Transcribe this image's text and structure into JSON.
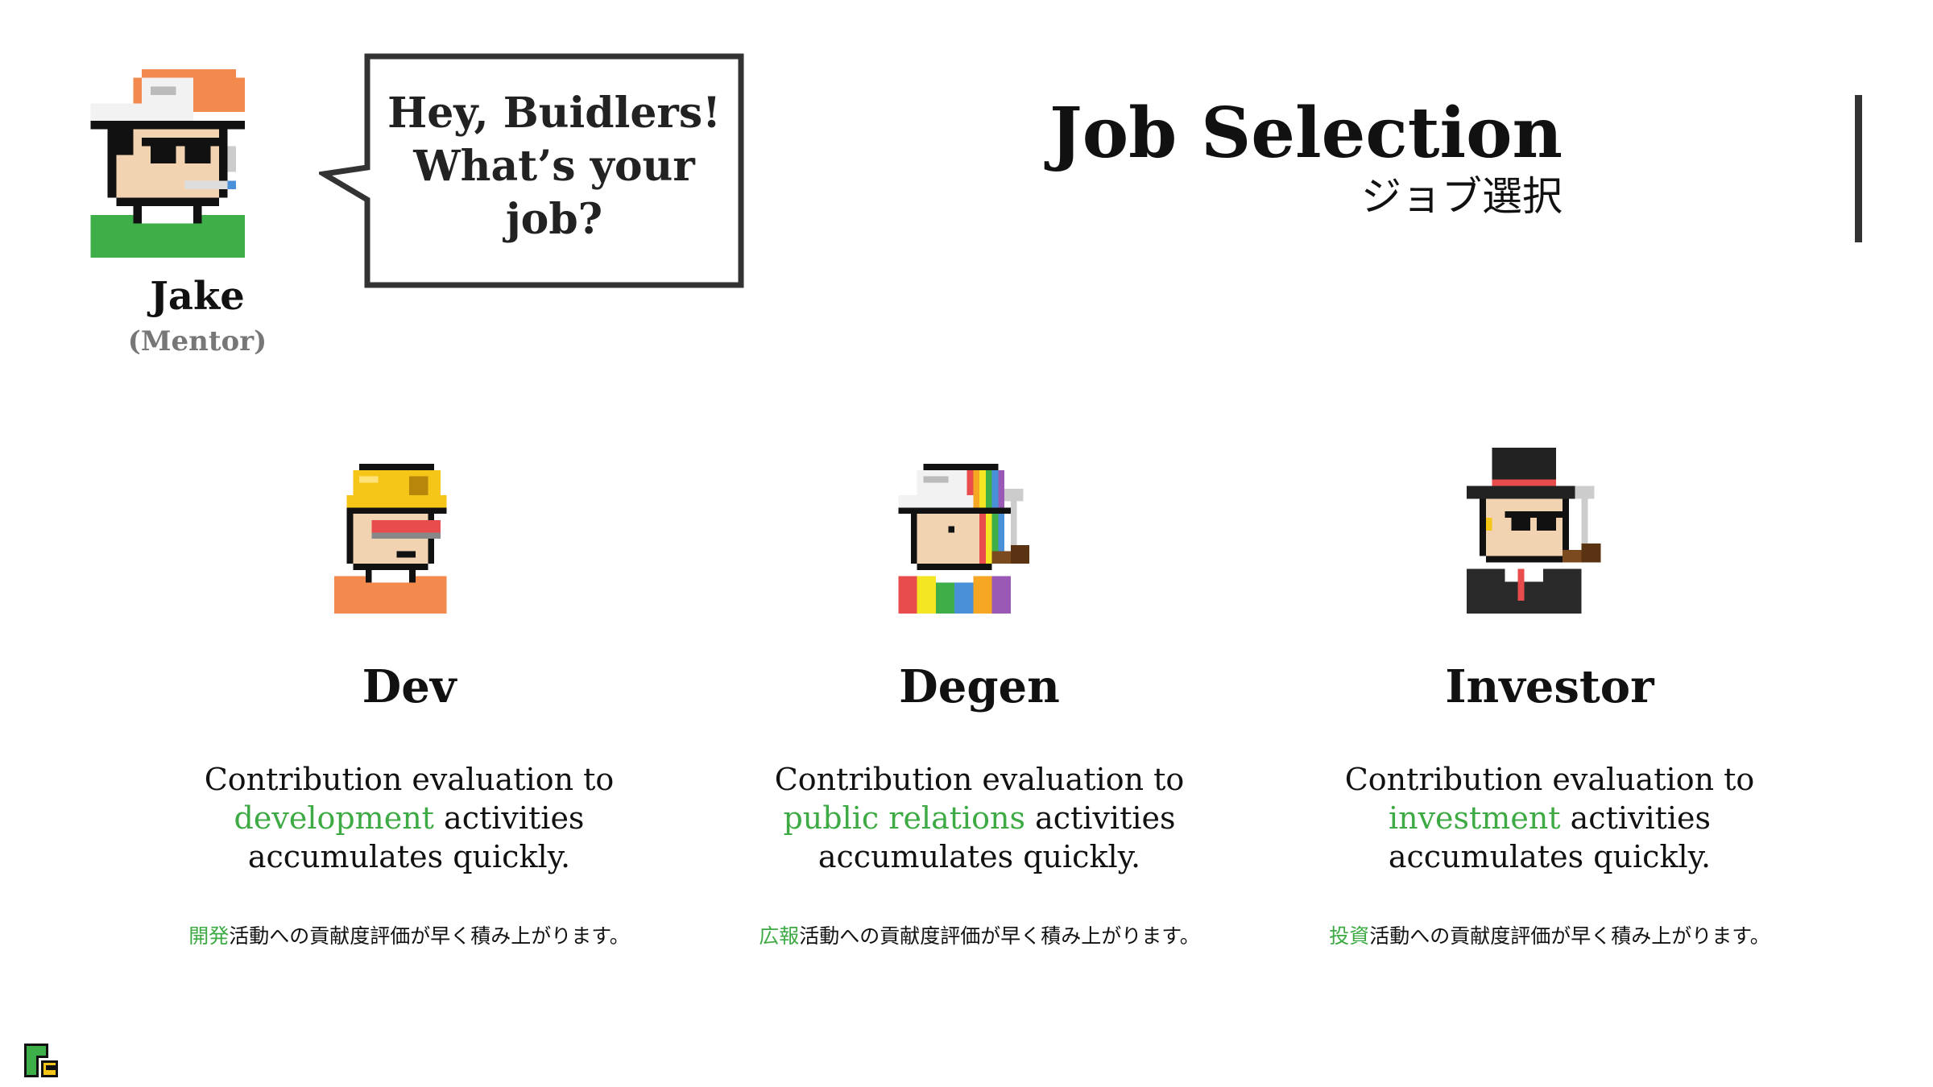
{
  "mentor": {
    "name": "Jake",
    "role": "(Mentor)",
    "avatar_icon": "mentor-pixel-avatar"
  },
  "speech": {
    "lines": [
      "Hey, Buidlers!",
      "What’s your",
      "job?"
    ]
  },
  "title": {
    "en": "Job Selection",
    "jp": "ジョブ選択"
  },
  "jobs": [
    {
      "name": "Dev",
      "icon": "dev-pixel-avatar",
      "desc_pre": "Contribution evaluation to",
      "desc_highlight": "development",
      "desc_post": " activities",
      "desc_end": "accumulates quickly.",
      "jp_highlight": "開発",
      "jp_rest": "活動への貢献度評価が早く積み上がります。"
    },
    {
      "name": "Degen",
      "icon": "degen-pixel-avatar",
      "desc_pre": "Contribution evaluation to",
      "desc_highlight": "public relations",
      "desc_post": " activities",
      "desc_end": "accumulates quickly.",
      "jp_highlight": "広報",
      "jp_rest": "活動への貢献度評価が早く積み上がります。"
    },
    {
      "name": "Investor",
      "icon": "investor-pixel-avatar",
      "desc_pre": "Contribution evaluation to",
      "desc_highlight": "investment",
      "desc_post": " activities",
      "desc_end": "accumulates quickly.",
      "jp_highlight": "投資",
      "jp_rest": "活動への貢献度評価が早く積み上がります。"
    }
  ],
  "colors": {
    "highlight": "#3daa44",
    "text": "#111111",
    "muted": "#777777",
    "border": "#333333"
  },
  "logo_icon": "brand-logo-icon"
}
